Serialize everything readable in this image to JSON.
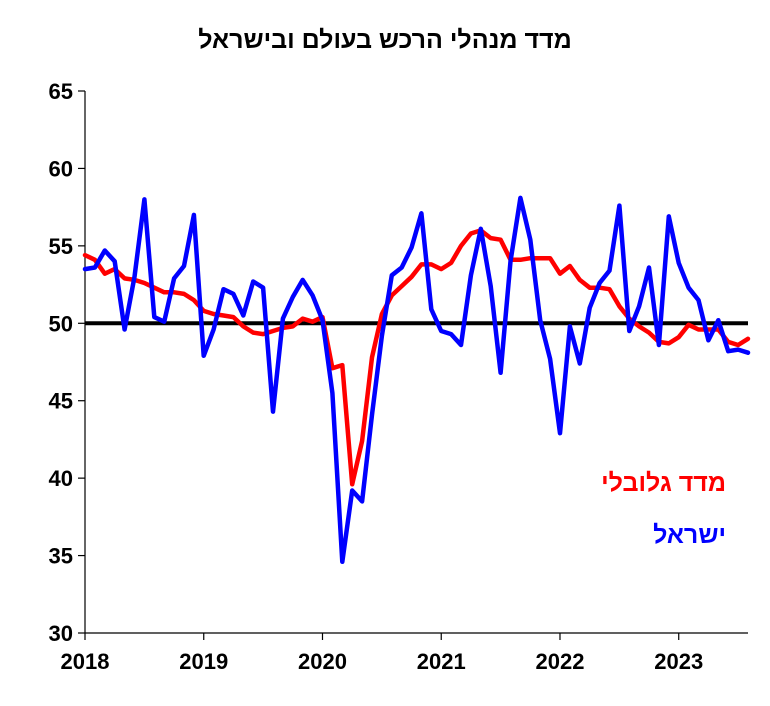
{
  "chart_data": {
    "type": "line",
    "title": "מדד מנהלי הרכש בעולם ובישראל",
    "xlabel": "",
    "ylabel": "",
    "ylim": [
      30,
      65
    ],
    "yticks": [
      "30",
      "35",
      "40",
      "45",
      "50",
      "55",
      "60",
      "65"
    ],
    "xticks": [
      "2018",
      "2019",
      "2020",
      "2021",
      "2022",
      "2023"
    ],
    "xlim": [
      "2018-01",
      "2023-08"
    ],
    "reference_line": 50,
    "grid": false,
    "legend_placement": "inside-right",
    "x": [
      "2018-01",
      "2018-02",
      "2018-03",
      "2018-04",
      "2018-05",
      "2018-06",
      "2018-07",
      "2018-08",
      "2018-09",
      "2018-10",
      "2018-11",
      "2018-12",
      "2019-01",
      "2019-02",
      "2019-03",
      "2019-04",
      "2019-05",
      "2019-06",
      "2019-07",
      "2019-08",
      "2019-09",
      "2019-10",
      "2019-11",
      "2019-12",
      "2020-01",
      "2020-02",
      "2020-03",
      "2020-04",
      "2020-05",
      "2020-06",
      "2020-07",
      "2020-08",
      "2020-09",
      "2020-10",
      "2020-11",
      "2020-12",
      "2021-01",
      "2021-02",
      "2021-03",
      "2021-04",
      "2021-05",
      "2021-06",
      "2021-07",
      "2021-08",
      "2021-09",
      "2021-10",
      "2021-11",
      "2021-12",
      "2022-01",
      "2022-02",
      "2022-03",
      "2022-04",
      "2022-05",
      "2022-06",
      "2022-07",
      "2022-08",
      "2022-09",
      "2022-10",
      "2022-11",
      "2022-12",
      "2023-01",
      "2023-02",
      "2023-03",
      "2023-04",
      "2023-05",
      "2023-06",
      "2023-07",
      "2023-08"
    ],
    "series": [
      {
        "name": "מדד גלובלי",
        "color": "#ff0000",
        "values": [
          54.4,
          54.1,
          53.2,
          53.5,
          52.9,
          52.8,
          52.6,
          52.3,
          52.0,
          52.0,
          51.9,
          51.5,
          50.8,
          50.6,
          50.5,
          50.4,
          49.8,
          49.4,
          49.3,
          49.5,
          49.7,
          49.8,
          50.3,
          50.1,
          50.4,
          47.1,
          47.3,
          39.6,
          42.4,
          47.8,
          50.6,
          51.8,
          52.4,
          53.0,
          53.8,
          53.8,
          53.5,
          53.9,
          55.0,
          55.8,
          56.0,
          55.5,
          55.4,
          54.1,
          54.1,
          54.2,
          54.2,
          54.2,
          53.2,
          53.7,
          52.8,
          52.3,
          52.3,
          52.2,
          51.1,
          50.3,
          49.8,
          49.4,
          48.8,
          48.7,
          49.1,
          49.9,
          49.6,
          49.6,
          49.6,
          48.8,
          48.6,
          49.0
        ]
      },
      {
        "name": "ישראל",
        "color": "#0000ff",
        "values": [
          53.5,
          53.6,
          54.7,
          54.0,
          49.6,
          53.0,
          58.0,
          50.4,
          50.1,
          52.9,
          53.7,
          57.0,
          47.9,
          49.6,
          52.2,
          51.9,
          50.5,
          52.7,
          52.3,
          44.3,
          50.3,
          51.7,
          52.8,
          51.8,
          50.2,
          45.5,
          34.6,
          39.2,
          38.5,
          44.1,
          49.2,
          53.1,
          53.6,
          54.9,
          57.1,
          50.9,
          49.5,
          49.3,
          48.6,
          53.1,
          56.1,
          52.4,
          46.8,
          54.0,
          58.1,
          55.4,
          50.2,
          47.7,
          42.9,
          49.8,
          47.4,
          51.0,
          52.6,
          53.4,
          57.6,
          49.5,
          51.1,
          53.6,
          48.6,
          56.9,
          53.9,
          52.3,
          51.5,
          48.9,
          50.2,
          48.2,
          48.3,
          48.1
        ]
      }
    ]
  }
}
